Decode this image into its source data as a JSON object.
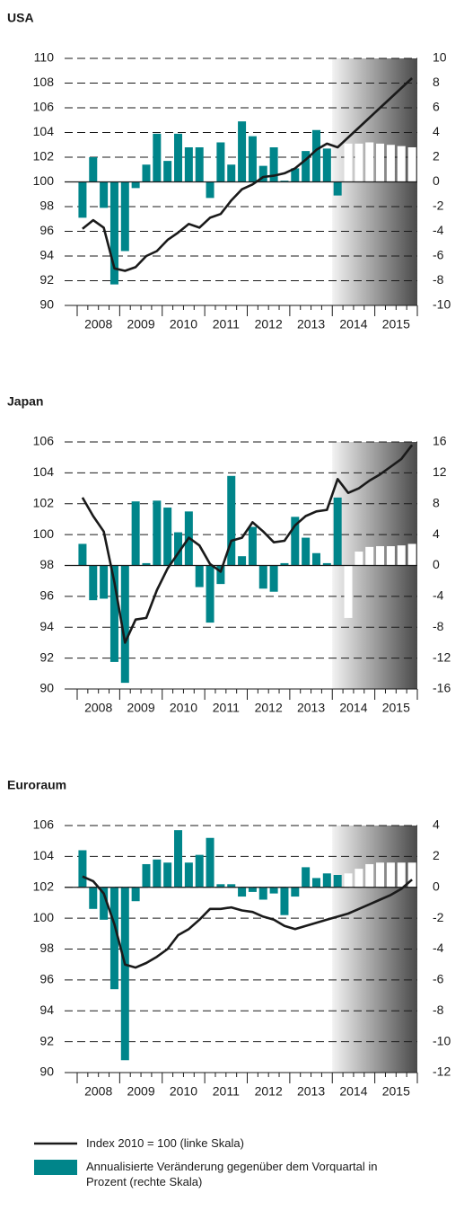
{
  "chart_data": [
    {
      "type": "combo",
      "title": "USA",
      "categories": [
        "2008",
        null,
        null,
        null,
        "2009",
        null,
        null,
        null,
        "2010",
        null,
        null,
        null,
        "2011",
        null,
        null,
        null,
        "2012",
        null,
        null,
        null,
        "2013",
        null,
        null,
        null,
        "2014",
        null,
        null,
        null,
        "2015",
        null,
        null,
        null
      ],
      "ylim": [
        90,
        110
      ],
      "yticks": [
        90,
        92,
        94,
        96,
        98,
        100,
        102,
        104,
        106,
        108,
        110
      ],
      "y2lim": [
        -10,
        10
      ],
      "y2ticks": [
        -10,
        -8,
        -6,
        -4,
        -2,
        0,
        2,
        4,
        6,
        8,
        10
      ],
      "grid": true,
      "shade_from": 24,
      "series": [
        {
          "name": "Annualisierte Veränderung gegenüber dem Vorquartal in Prozent (rechte Skala)",
          "type": "bar",
          "axis": "y2",
          "color": "#00858a",
          "forecast_from": 25,
          "forecast_color": "#ffffff",
          "values": [
            -2.9,
            2.0,
            -2.1,
            -8.3,
            -5.6,
            -0.5,
            1.4,
            3.9,
            1.7,
            3.9,
            2.8,
            2.8,
            -1.3,
            3.2,
            1.4,
            4.9,
            3.7,
            1.3,
            2.8,
            0.1,
            1.1,
            2.5,
            4.2,
            2.7,
            -1.1,
            3.1,
            3.1,
            3.2,
            3.1,
            3.0,
            2.9,
            2.8
          ]
        },
        {
          "name": "Index 2010 = 100 (linke Skala)",
          "type": "line",
          "color": "#1a1a1a",
          "values": [
            96.2,
            96.9,
            96.3,
            93.0,
            92.8,
            93.1,
            94.0,
            94.4,
            95.3,
            95.9,
            96.6,
            96.3,
            97.1,
            97.4,
            98.5,
            99.4,
            99.8,
            100.4,
            100.5,
            100.7,
            101.1,
            101.8,
            102.6,
            103.1,
            102.8,
            103.6,
            104.4,
            105.2,
            106.0,
            106.8,
            107.6,
            108.4
          ]
        }
      ]
    },
    {
      "type": "combo",
      "title": "Japan",
      "categories": [
        "2008",
        null,
        null,
        null,
        "2009",
        null,
        null,
        null,
        "2010",
        null,
        null,
        null,
        "2011",
        null,
        null,
        null,
        "2012",
        null,
        null,
        null,
        "2013",
        null,
        null,
        null,
        "2014",
        null,
        null,
        null,
        "2015",
        null,
        null,
        null
      ],
      "ylim": [
        90,
        106
      ],
      "yticks": [
        90,
        92,
        94,
        96,
        98,
        100,
        102,
        104,
        106
      ],
      "y2lim": [
        -16,
        16
      ],
      "y2ticks": [
        -16,
        -12,
        -8,
        -4,
        0,
        4,
        8,
        12,
        16
      ],
      "grid": true,
      "shade_from": 24,
      "series": [
        {
          "type": "bar",
          "axis": "y2",
          "color": "#00858a",
          "forecast_from": 25,
          "forecast_color": "#ffffff",
          "values": [
            2.8,
            -4.5,
            -4.3,
            -12.5,
            -15.2,
            8.3,
            0.3,
            8.4,
            7.5,
            4.3,
            7.0,
            -2.8,
            -7.4,
            -2.4,
            11.6,
            1.2,
            5.0,
            -3.0,
            -3.4,
            0.3,
            6.3,
            3.6,
            1.6,
            0.3,
            8.8,
            -6.8,
            1.8,
            2.4,
            2.5,
            2.5,
            2.6,
            2.8
          ]
        },
        {
          "type": "line",
          "color": "#1a1a1a",
          "values": [
            102.4,
            101.2,
            100.2,
            96.9,
            93.0,
            94.5,
            94.6,
            96.4,
            97.8,
            98.8,
            99.8,
            99.3,
            98.1,
            97.6,
            99.6,
            99.8,
            100.8,
            100.2,
            99.5,
            99.6,
            100.6,
            101.2,
            101.5,
            101.6,
            103.6,
            102.7,
            103.0,
            103.5,
            103.9,
            104.4,
            104.9,
            105.8
          ]
        }
      ]
    },
    {
      "type": "combo",
      "title": "Euroraum",
      "categories": [
        "2008",
        null,
        null,
        null,
        "2009",
        null,
        null,
        null,
        "2010",
        null,
        null,
        null,
        "2011",
        null,
        null,
        null,
        "2012",
        null,
        null,
        null,
        "2013",
        null,
        null,
        null,
        "2014",
        null,
        null,
        null,
        "2015",
        null,
        null,
        null
      ],
      "ylim": [
        90,
        106
      ],
      "yticks": [
        90,
        92,
        94,
        96,
        98,
        100,
        102,
        104,
        106
      ],
      "y2lim": [
        -12,
        4
      ],
      "y2ticks": [
        -12,
        -10,
        -8,
        -6,
        -4,
        -2,
        0,
        2,
        4
      ],
      "grid": true,
      "shade_from": 24,
      "series": [
        {
          "type": "bar",
          "axis": "y2",
          "color": "#00858a",
          "forecast_from": 25,
          "forecast_color": "#ffffff",
          "values": [
            2.4,
            -1.4,
            -2.1,
            -6.6,
            -11.2,
            -0.9,
            1.5,
            1.8,
            1.6,
            3.7,
            1.6,
            2.1,
            3.2,
            0.2,
            0.2,
            -0.6,
            -0.3,
            -0.8,
            -0.4,
            -1.8,
            -0.6,
            1.3,
            0.6,
            0.9,
            0.8,
            0.9,
            1.2,
            1.5,
            1.6,
            1.6,
            1.6,
            1.6
          ]
        },
        {
          "type": "line",
          "color": "#1a1a1a",
          "values": [
            102.7,
            102.4,
            101.6,
            99.6,
            97.0,
            96.8,
            97.1,
            97.5,
            98.0,
            98.9,
            99.3,
            99.9,
            100.6,
            100.6,
            100.7,
            100.5,
            100.4,
            100.1,
            99.9,
            99.5,
            99.3,
            99.5,
            99.7,
            99.9,
            100.1,
            100.3,
            100.6,
            100.9,
            101.2,
            101.5,
            101.9,
            102.5
          ]
        }
      ]
    }
  ]
}
